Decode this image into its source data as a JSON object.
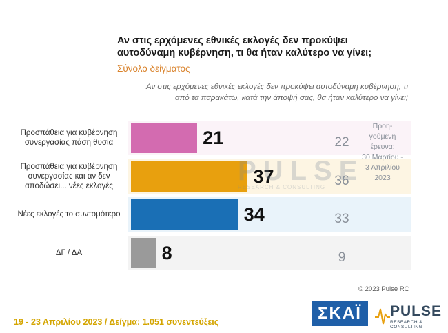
{
  "header": {
    "title": "Αν στις ερχόμενες εθνικές εκλογές δεν προκύψει αυτοδύναμη κυβέρνηση, τι θα ήταν καλύτερο να γίνει;",
    "subtitle": "Σύνολο δείγματος",
    "question": "Αν στις ερχόμενες εθνικές εκλογές δεν προκύψει αυτοδύναμη κυβέρνηση, τι από τα παρακάτω, κατά την άποψή σας, θα ήταν καλύτερο να γίνει;"
  },
  "chart_data": {
    "type": "bar",
    "orientation": "horizontal",
    "categories": [
      "Προσπάθεια για κυβέρνηση συνεργασίας πάση θυσία",
      "Προσπάθεια για κυβέρνηση συνεργασίας και αν δεν αποδώσει... νέες εκλογές",
      "Νέες εκλογές το συντομότερο",
      "ΔΓ / ΔΑ"
    ],
    "series": [
      {
        "name": "",
        "values": [
          21,
          37,
          34,
          8
        ]
      },
      {
        "name": "Προη-γούμενη έρευνα: 30 Μαρτίου - 3 Απριλίου 2023",
        "values": [
          22,
          36,
          33,
          9
        ]
      }
    ],
    "colors": [
      "#d36bb0",
      "#e8a00e",
      "#1a6fb5",
      "#9a9a9a"
    ],
    "row_bg_colors": [
      "#fbf3f8",
      "#fdf5e3",
      "#e9f3fa",
      "#f3f3f3"
    ],
    "previous_color": "#8a9099",
    "xlim": [
      0,
      100
    ]
  },
  "prev_note": {
    "line1": "Προη-",
    "line2": "γούμενη",
    "line3": "έρευνα:",
    "line4": "30 Μαρτίου -",
    "line5": "3 Απριλίου",
    "line6": "2023"
  },
  "watermark": {
    "main": "PULSE",
    "sub": "RESEARCH & CONSULTING"
  },
  "copyright": "© 2023 Pulse RC",
  "footer": "19 - 23  Απριλίου  2023  /  Δείγμα:  1.051 συνεντεύξεις",
  "logos": {
    "skai": "ΣΚΑΪ",
    "pulse": "PULSE",
    "pulse_sub": "RESEARCH & CONSULTING"
  }
}
